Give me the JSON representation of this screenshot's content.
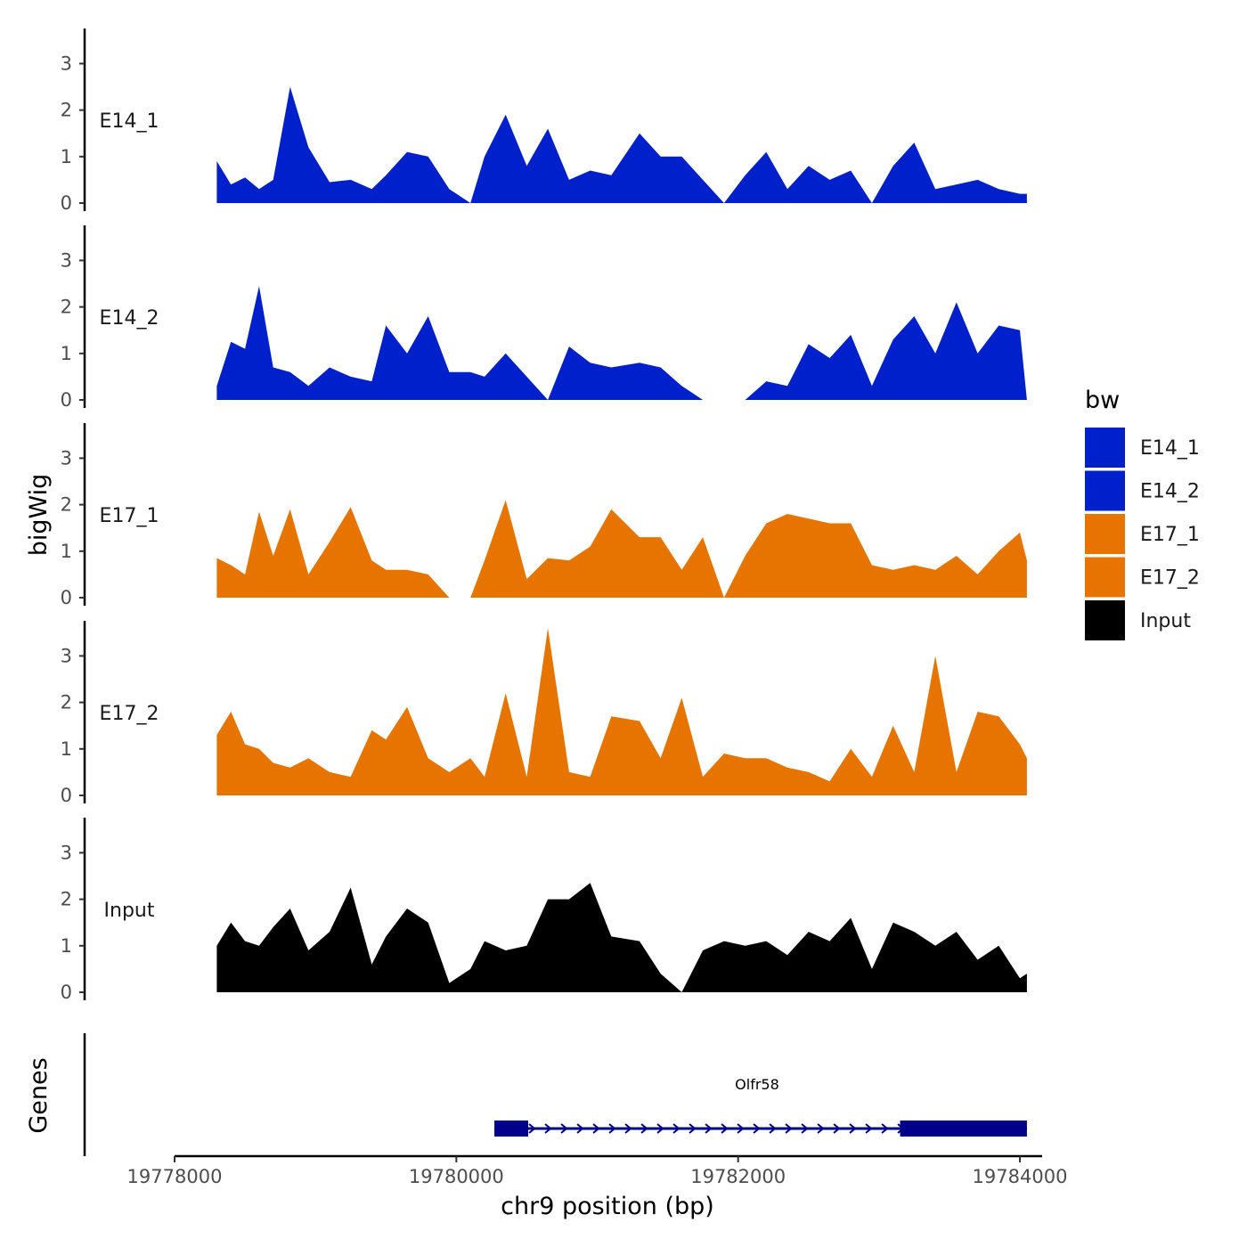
{
  "chart_data": {
    "type": "area",
    "chromosome": "chr9",
    "xlabel": "chr9 position (bp)",
    "ylabel": "bigWig",
    "genes_label": "Genes",
    "xlim": [
      19777900,
      19784200
    ],
    "x_ticks": [
      19778000,
      19780000,
      19782000,
      19784000
    ],
    "x_tick_labels": [
      "19778000",
      "19780000",
      "19782000",
      "19784000"
    ],
    "ylim": [
      0,
      3.8
    ],
    "y_ticks": [
      0,
      1,
      2,
      3
    ],
    "y_tick_labels": [
      "0",
      "1",
      "2",
      "3"
    ],
    "legend": {
      "title": "bw",
      "entries": [
        {
          "label": "E14_1",
          "color": "#0020CC"
        },
        {
          "label": "E14_2",
          "color": "#0020CC"
        },
        {
          "label": "E17_1",
          "color": "#E87400"
        },
        {
          "label": "E17_2",
          "color": "#E87400"
        },
        {
          "label": "Input",
          "color": "#000000"
        }
      ]
    },
    "x": [
      19778300,
      19778400,
      19778500,
      19778600,
      19778700,
      19778820,
      19778950,
      19779100,
      19779250,
      19779400,
      19779500,
      19779650,
      19779800,
      19779950,
      19780100,
      19780200,
      19780350,
      19780500,
      19780650,
      19780800,
      19780950,
      19781100,
      19781300,
      19781450,
      19781600,
      19781750,
      19781900,
      19782050,
      19782200,
      19782350,
      19782500,
      19782650,
      19782800,
      19782950,
      19783100,
      19783250,
      19783400,
      19783550,
      19783700,
      19783850,
      19784000,
      19784050
    ],
    "series": [
      {
        "name": "E14_1",
        "color": "#0020CC",
        "values": [
          0.9,
          0.4,
          0.55,
          0.3,
          0.5,
          2.5,
          1.2,
          0.45,
          0.5,
          0.3,
          0.6,
          1.1,
          1.0,
          0.3,
          0.0,
          1.0,
          1.9,
          0.8,
          1.6,
          0.5,
          0.7,
          0.6,
          1.5,
          1.0,
          1.0,
          0.5,
          0.0,
          0.6,
          1.1,
          0.3,
          0.8,
          0.5,
          0.7,
          0.0,
          0.8,
          1.3,
          0.3,
          0.4,
          0.5,
          0.3,
          0.2,
          0.2
        ]
      },
      {
        "name": "E14_2",
        "color": "#0020CC",
        "values": [
          0.3,
          1.25,
          1.1,
          2.45,
          0.7,
          0.6,
          0.3,
          0.7,
          0.5,
          0.4,
          1.6,
          1.0,
          1.8,
          0.6,
          0.6,
          0.5,
          1.0,
          0.5,
          0.0,
          1.15,
          0.8,
          0.7,
          0.8,
          0.7,
          0.3,
          0.0,
          0.0,
          0.0,
          0.4,
          0.3,
          1.2,
          0.9,
          1.4,
          0.3,
          1.3,
          1.8,
          1.0,
          2.1,
          1.0,
          1.6,
          1.5,
          0.0
        ]
      },
      {
        "name": "E17_1",
        "color": "#E87400",
        "values": [
          0.85,
          0.7,
          0.5,
          1.85,
          0.9,
          1.9,
          0.5,
          1.2,
          1.95,
          0.8,
          0.6,
          0.6,
          0.5,
          0.0,
          0.0,
          0.8,
          2.1,
          0.4,
          0.85,
          0.8,
          1.1,
          1.9,
          1.3,
          1.3,
          0.6,
          1.3,
          0.0,
          0.9,
          1.6,
          1.8,
          1.7,
          1.6,
          1.6,
          0.7,
          0.6,
          0.7,
          0.6,
          0.9,
          0.5,
          1.0,
          1.4,
          0.8
        ]
      },
      {
        "name": "E17_2",
        "color": "#E87400",
        "values": [
          1.3,
          1.8,
          1.1,
          1.0,
          0.7,
          0.6,
          0.8,
          0.5,
          0.4,
          1.4,
          1.2,
          1.9,
          0.8,
          0.5,
          0.8,
          0.4,
          2.2,
          0.4,
          3.6,
          0.5,
          0.4,
          1.7,
          1.6,
          0.8,
          2.1,
          0.4,
          0.9,
          0.8,
          0.8,
          0.6,
          0.5,
          0.3,
          1.0,
          0.4,
          1.5,
          0.5,
          3.0,
          0.5,
          1.8,
          1.7,
          1.1,
          0.8
        ]
      },
      {
        "name": "Input",
        "color": "#000000",
        "values": [
          1.0,
          1.5,
          1.1,
          1.0,
          1.4,
          1.8,
          0.9,
          1.3,
          2.25,
          0.6,
          1.2,
          1.8,
          1.5,
          0.2,
          0.5,
          1.1,
          0.9,
          1.0,
          2.0,
          2.0,
          2.35,
          1.2,
          1.1,
          0.4,
          0.0,
          0.9,
          1.1,
          1.0,
          1.1,
          0.8,
          1.3,
          1.1,
          1.6,
          0.5,
          1.5,
          1.3,
          1.0,
          1.3,
          0.7,
          1.0,
          0.3,
          0.4
        ]
      }
    ],
    "gene": {
      "name": "Olfr58",
      "start": 19780270,
      "end": 19784050,
      "strand": "+",
      "exons": [
        [
          19780270,
          19780510
        ],
        [
          19783150,
          19784050
        ]
      ],
      "color": "#00008B"
    }
  }
}
